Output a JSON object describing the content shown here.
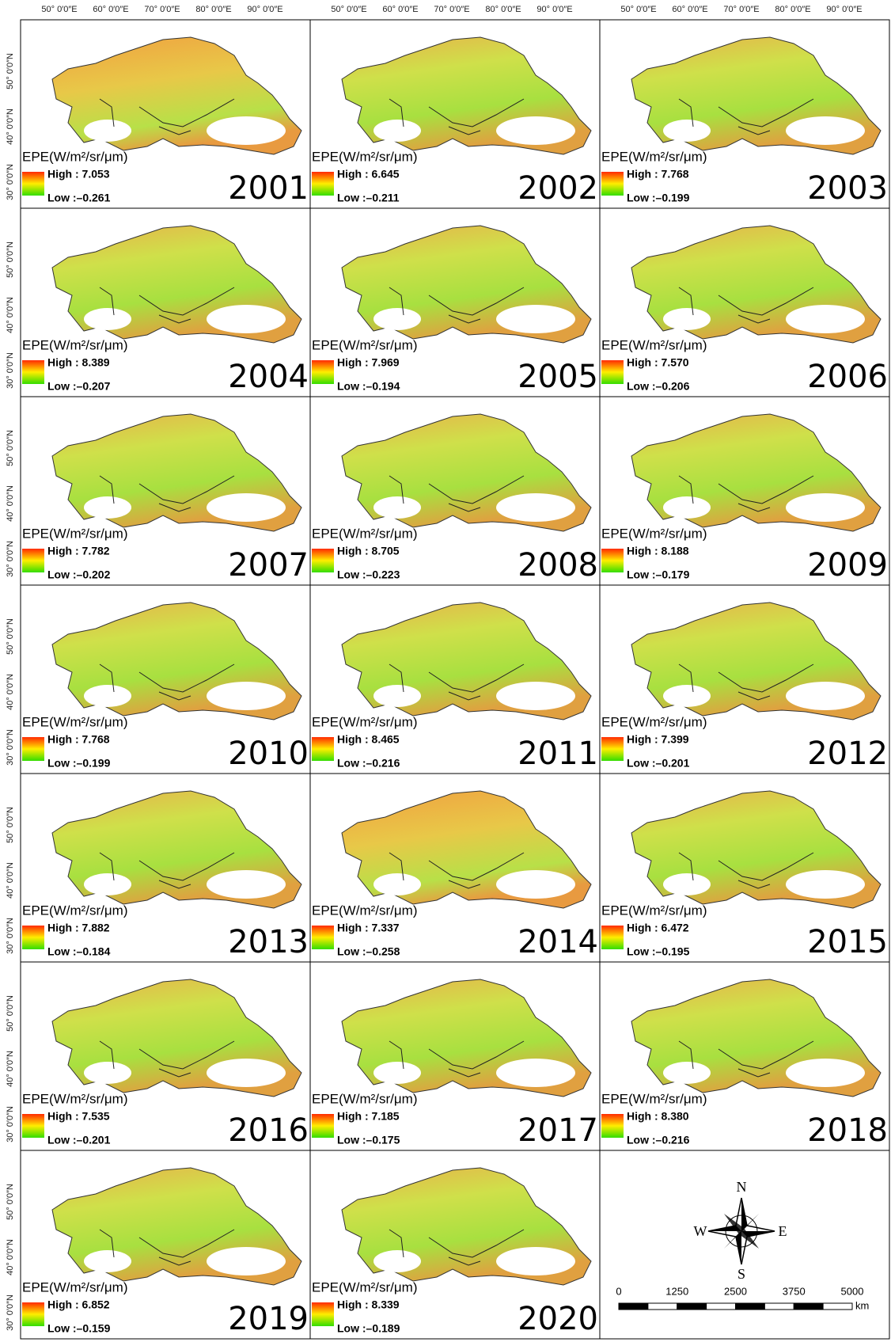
{
  "longitude_labels": [
    "50° 0′0″E",
    "60° 0′0″E",
    "70° 0′0″E",
    "80° 0′0″E",
    "90° 0′0″E"
  ],
  "latitude_labels": [
    "30° 0′0″N",
    "40° 0′0″N",
    "50° 0′0″N"
  ],
  "legend_title": "EPE(W/m²/sr/μm)",
  "panels": [
    {
      "year": "2001",
      "high": "High : 7.053",
      "low": "Low :–0.261"
    },
    {
      "year": "2002",
      "high": "High : 6.645",
      "low": "Low :–0.211"
    },
    {
      "year": "2003",
      "high": "High : 7.768",
      "low": "Low :–0.199"
    },
    {
      "year": "2004",
      "high": "High : 8.389",
      "low": "Low :–0.207"
    },
    {
      "year": "2005",
      "high": "High : 7.969",
      "low": "Low :–0.194"
    },
    {
      "year": "2006",
      "high": "High : 7.570",
      "low": "Low :–0.206"
    },
    {
      "year": "2007",
      "high": "High : 7.782",
      "low": "Low :–0.202"
    },
    {
      "year": "2008",
      "high": "High : 8.705",
      "low": "Low :–0.223"
    },
    {
      "year": "2009",
      "high": "High : 8.188",
      "low": "Low :–0.179"
    },
    {
      "year": "2010",
      "high": "High : 7.768",
      "low": "Low :–0.199"
    },
    {
      "year": "2011",
      "high": "High : 8.465",
      "low": "Low :–0.216"
    },
    {
      "year": "2012",
      "high": "High : 7.399",
      "low": "Low :–0.201"
    },
    {
      "year": "2013",
      "high": "High : 7.882",
      "low": "Low :–0.184"
    },
    {
      "year": "2014",
      "high": "High : 7.337",
      "low": "Low :–0.258"
    },
    {
      "year": "2015",
      "high": "High : 6.472",
      "low": "Low :–0.195"
    },
    {
      "year": "2016",
      "high": "High : 7.535",
      "low": "Low :–0.201"
    },
    {
      "year": "2017",
      "high": "High : 7.185",
      "low": "Low :–0.175"
    },
    {
      "year": "2018",
      "high": "High : 8.380",
      "low": "Low :–0.216"
    },
    {
      "year": "2019",
      "high": "High : 6.852",
      "low": "Low :–0.159"
    },
    {
      "year": "2020",
      "high": "High : 8.339",
      "low": "Low :–0.189"
    }
  ],
  "compass": {
    "north": "N",
    "south": "S",
    "east": "E",
    "west": "W"
  },
  "scale_bar": {
    "labels": [
      "0",
      "1250",
      "2500",
      "3750",
      "5000"
    ],
    "unit": "km"
  }
}
